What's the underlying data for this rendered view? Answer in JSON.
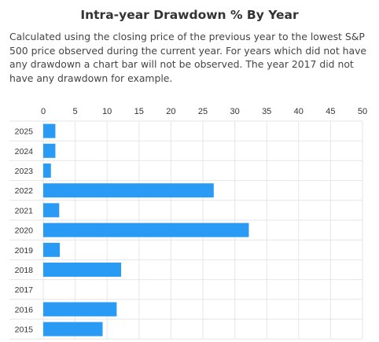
{
  "chart_data": {
    "type": "bar",
    "orientation": "horizontal",
    "title": "Intra-year Drawdown % By Year",
    "subtitle": "Calculated using the closing price of the previous year to the lowest S&P 500 price observed during the current year. For years which did not have any drawdown a chart bar will not be observed. The year 2017 did not have any drawdown for example.",
    "categories": [
      "2025",
      "2024",
      "2023",
      "2022",
      "2021",
      "2020",
      "2019",
      "2018",
      "2017",
      "2016",
      "2015"
    ],
    "values": [
      1.9,
      1.9,
      1.2,
      26.7,
      2.5,
      32.2,
      2.6,
      12.2,
      0,
      11.5,
      9.3
    ],
    "xlim": [
      0,
      50
    ],
    "xticks": [
      0,
      5,
      10,
      15,
      20,
      25,
      30,
      35,
      40,
      45,
      50
    ],
    "xaxis_position": "top",
    "grid": true,
    "bar_color": "#2a9bf4"
  }
}
